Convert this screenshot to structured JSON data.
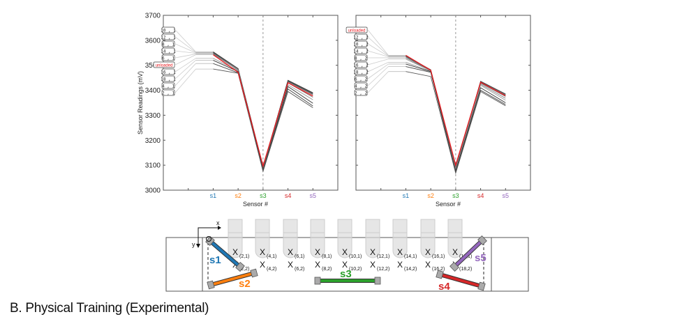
{
  "caption": "B. Physical Training (Experimental)",
  "chart_data": [
    {
      "type": "line",
      "xlabel": "Sensor #",
      "ylabel": "Sensor Readings (mV)",
      "categories": [
        "s1",
        "s2",
        "s3",
        "s4",
        "s5"
      ],
      "category_colors": [
        "#1f77b4",
        "#ff7f0e",
        "#2ca02c",
        "#d62728",
        "#9467bd"
      ],
      "ylim": [
        3000,
        3700
      ],
      "yticks": [
        3000,
        3100,
        3200,
        3300,
        3400,
        3500,
        3600,
        3700
      ],
      "divider_at": "s3",
      "grid": false,
      "series": [
        {
          "name": "10,1",
          "values": [
            3554,
            3487,
            3094,
            3440,
            3390
          ]
        },
        {
          "name": "12,1",
          "values": [
            3552,
            3486,
            3092,
            3438,
            3388
          ]
        },
        {
          "name": "8,1",
          "values": [
            3550,
            3485,
            3090,
            3436,
            3385
          ]
        },
        {
          "name": "14,1",
          "values": [
            3548,
            3484,
            3088,
            3434,
            3382
          ]
        },
        {
          "name": "6,1",
          "values": [
            3545,
            3480,
            3086,
            3430,
            3372
          ]
        },
        {
          "name": "unloaded",
          "values": [
            3542,
            3472,
            3097,
            3430,
            3377
          ],
          "color": "#e8161b"
        },
        {
          "name": "16,1",
          "values": [
            3528,
            3478,
            3084,
            3422,
            3362
          ]
        },
        {
          "name": "18,1",
          "values": [
            3520,
            3475,
            3082,
            3415,
            3348
          ]
        },
        {
          "name": "4,1",
          "values": [
            3507,
            3470,
            3078,
            3405,
            3337
          ]
        },
        {
          "name": "2,1",
          "values": [
            3485,
            3468,
            3075,
            3395,
            3330
          ]
        }
      ]
    },
    {
      "type": "line",
      "xlabel": "Sensor #",
      "ylabel": "",
      "categories": [
        "s1",
        "s2",
        "s3",
        "s4",
        "s5"
      ],
      "category_colors": [
        "#1f77b4",
        "#ff7f0e",
        "#2ca02c",
        "#d62728",
        "#9467bd"
      ],
      "ylim": [
        3000,
        3700
      ],
      "divider_at": "s3",
      "grid": false,
      "series": [
        {
          "name": "unloaded",
          "values": [
            3540,
            3480,
            3100,
            3432,
            3378
          ],
          "color": "#e8161b"
        },
        {
          "name": "12,2",
          "values": [
            3538,
            3482,
            3092,
            3436,
            3385
          ]
        },
        {
          "name": "10,2",
          "values": [
            3536,
            3481,
            3090,
            3434,
            3383
          ]
        },
        {
          "name": "14,2",
          "values": [
            3534,
            3480,
            3088,
            3430,
            3380
          ]
        },
        {
          "name": "8,2",
          "values": [
            3530,
            3479,
            3086,
            3428,
            3375
          ]
        },
        {
          "name": "16,2",
          "values": [
            3525,
            3478,
            3083,
            3424,
            3368
          ]
        },
        {
          "name": "18,2",
          "values": [
            3512,
            3476,
            3080,
            3420,
            3360
          ]
        },
        {
          "name": "6,2",
          "values": [
            3505,
            3475,
            3077,
            3410,
            3350
          ]
        },
        {
          "name": "4,2",
          "values": [
            3495,
            3472,
            3073,
            3400,
            3343
          ]
        },
        {
          "name": "2,2",
          "values": [
            3475,
            3455,
            3068,
            3395,
            3338
          ]
        }
      ]
    }
  ],
  "diagram": {
    "axis_x": "x",
    "axis_y": "y",
    "sensors": [
      {
        "label": "s1",
        "color": "#1f77b4"
      },
      {
        "label": "s2",
        "color": "#ff7f0e"
      },
      {
        "label": "s3",
        "color": "#2ca02c"
      },
      {
        "label": "s4",
        "color": "#d62728"
      },
      {
        "label": "s5",
        "color": "#9467bd"
      }
    ],
    "points_row1": [
      "(2,1)",
      "(4,1)",
      "(6,1)",
      "(8,1)",
      "(10,1)",
      "(12,1)",
      "(14,1)",
      "(16,1)",
      "(18,1)"
    ],
    "points_row2": [
      "(2,2)",
      "(4,2)",
      "(6,2)",
      "(8,2)",
      "(10,2)",
      "(12,2)",
      "(14,2)",
      "(16,2)",
      "(18,2)"
    ],
    "point_marker": "X"
  }
}
